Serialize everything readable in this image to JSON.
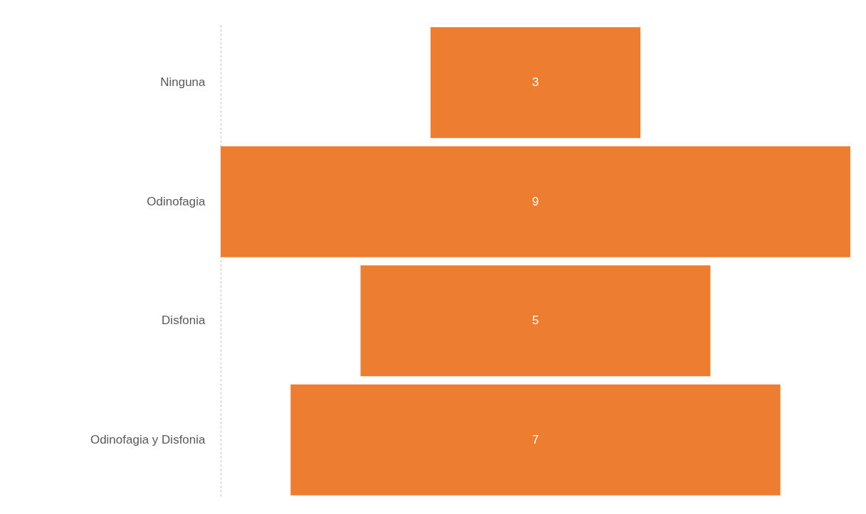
{
  "chart_data": {
    "type": "other",
    "categories": [
      "Ninguna",
      "Odinofagia",
      "Disfonia",
      "Odinofagia y Disfonia"
    ],
    "values": [
      3,
      9,
      5,
      7
    ],
    "color": "#ed7d31",
    "data_labels": true
  }
}
